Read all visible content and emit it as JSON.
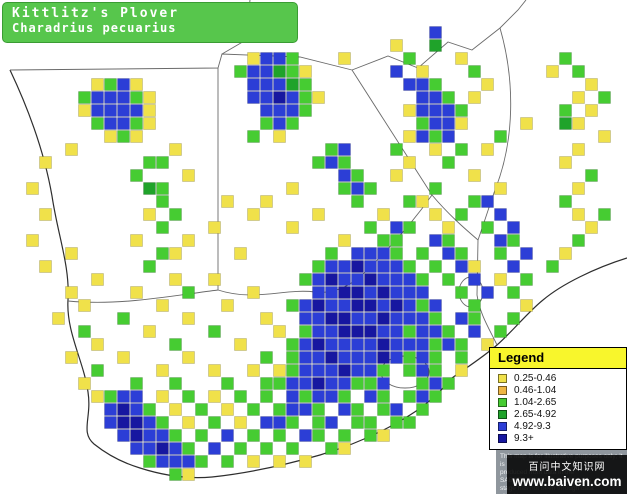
{
  "title": {
    "common_name": "Kittlitz's Plover",
    "scientific_name": "Charadrius pecuarius"
  },
  "legend": {
    "title": "Legend",
    "items": [
      {
        "label": "0.25-0.46",
        "color": "#f0e14a"
      },
      {
        "label": "0.46-1.04",
        "color": "#eeb644"
      },
      {
        "label": "1.04-2.65",
        "color": "#46cc32"
      },
      {
        "label": "2.65-4.92",
        "color": "#1fa32a"
      },
      {
        "label": "4.92-9.3",
        "color": "#2c3ed6"
      },
      {
        "label": "9.3+",
        "color": "#1717a0"
      }
    ]
  },
  "disclaimer": {
    "lines": [
      "This map is for illustrative purposes only; it is",
      "produced from data in the",
      "SABAP2 database which at this",
      "stage has not been through data",
      "checking operations"
    ]
  },
  "watermark": {
    "site_name": "百问中文知识网",
    "url": "www.baiven.com"
  },
  "map": {
    "cell_size": 13,
    "palette": {
      "1": "#f0e14a",
      "2": "#eeb644",
      "3": "#46cc32",
      "4": "#1fa32a",
      "5": "#2c3ed6",
      "6": "#1717a0"
    },
    "grid": [
      "................................................",
      "................................................",
      ".................................5..............",
      "..............................1..4..............",
      "...................1553...1....3...1.......3....",
      "..................355431......5.1...3.....1.3...",
      ".......1351........55543.......553...1.......1..",
      "......355531.......556531.......553.1.......1.3.",
      "......155551........5553.......15553.......3.1..",
      ".......35531........353.........3551....1..41...",
      "........131........3.1.........1535...3.......1.",
      ".....1.......1...........35...3..1.3.1......1...",
      "...1.......33...........353....1..3........1....",
      "..........3...1...........53..1.....1........3..",
      "..1........43.........1...353....3....1.....1...",
      "............3....1..1......3...31...35.....3....",
      "...1.......1.3.....1....1....1...1.3..5.....1.3.",
      "............3...1.....1.....3.53..1..3.5.....1..",
      "..1.......1...1...........1..33..53...53....3...",
      ".....1......31....1......3.5553.3.53..3.5..1....",
      "...1.......3............35565553.3.51..5..3.....",
      ".......1.....1..1......3565565553.3.5.1.3.......",
      ".....1....1...3....1....556656555..3.5.3........",
      "......1.....1....1....356556656535..3...1.......",
      "....1....3....1.....1..55665565553.53..3........",
      "......3....1....3....1.355666553553.5.3.........",
      ".......1.....3....1...35655556555353.1..........",
      ".....1...1....1.....3.355655565353.3............",
      ".......3....1...1..1.135556553.353.1............",
      "......1...3..3...3..3355655335..353.............",
      ".......1355.1.3.1.3.3.53553.53.353..............",
      "........5653.1.3.1.3.3553.53.35.3...............",
      "........56653.1.3.1.553.35.33.33................",
      ".........56553.3.5.3.3.53.3.31..................",
      "..........55653.5.3.3.3..31.....................",
      "...........35553.3.1.1.1........................",
      ".............31.................................",
      "................................................"
    ]
  }
}
